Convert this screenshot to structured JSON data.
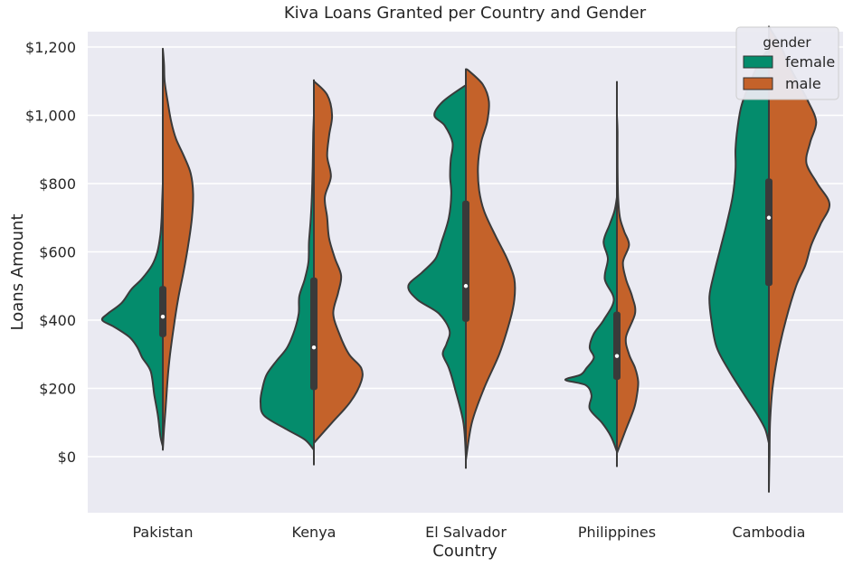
{
  "chart_data": {
    "type": "violin",
    "title": "Kiva Loans Granted per Country and Gender",
    "xlabel": "Country",
    "ylabel": "Loans Amount",
    "categories": [
      "Pakistan",
      "Kenya",
      "El Salvador",
      "Philippines",
      "Cambodia"
    ],
    "ylim": [
      -170,
      1270
    ],
    "yticks": [
      0,
      200,
      400,
      600,
      800,
      1000,
      1200
    ],
    "ytick_labels": [
      "$0",
      "$200",
      "$400",
      "$600",
      "$800",
      "$1,000",
      "$1,200"
    ],
    "grid": true,
    "split": true,
    "legend": {
      "title": "gender",
      "placement": "top-right",
      "entries": [
        {
          "name": "female",
          "color": "#048c6c"
        },
        {
          "name": "male",
          "color": "#c4622a"
        }
      ]
    },
    "series": [
      {
        "name": "female",
        "color": "#048c6c",
        "densities": [
          [
            [
              30,
              0
            ],
            [
              60,
              0.04
            ],
            [
              120,
              0.08
            ],
            [
              180,
              0.14
            ],
            [
              250,
              0.2
            ],
            [
              290,
              0.34
            ],
            [
              320,
              0.42
            ],
            [
              350,
              0.55
            ],
            [
              380,
              0.8
            ],
            [
              400,
              1.0
            ],
            [
              420,
              0.9
            ],
            [
              450,
              0.68
            ],
            [
              490,
              0.52
            ],
            [
              520,
              0.35
            ],
            [
              560,
              0.18
            ],
            [
              600,
              0.09
            ],
            [
              650,
              0.04
            ],
            [
              700,
              0.02
            ],
            [
              750,
              0.01
            ],
            [
              800,
              0
            ]
          ],
          [
            [
              20,
              0
            ],
            [
              50,
              0.15
            ],
            [
              80,
              0.45
            ],
            [
              120,
              0.82
            ],
            [
              160,
              0.88
            ],
            [
              200,
              0.85
            ],
            [
              240,
              0.78
            ],
            [
              280,
              0.62
            ],
            [
              320,
              0.44
            ],
            [
              370,
              0.32
            ],
            [
              420,
              0.25
            ],
            [
              470,
              0.24
            ],
            [
              520,
              0.15
            ],
            [
              570,
              0.09
            ],
            [
              630,
              0.08
            ],
            [
              700,
              0.05
            ],
            [
              780,
              0.03
            ],
            [
              850,
              0.02
            ],
            [
              950,
              0.01
            ],
            [
              1000,
              0
            ]
          ],
          [
            [
              0,
              0
            ],
            [
              100,
              0.04
            ],
            [
              200,
              0.18
            ],
            [
              260,
              0.28
            ],
            [
              300,
              0.38
            ],
            [
              330,
              0.32
            ],
            [
              370,
              0.27
            ],
            [
              420,
              0.45
            ],
            [
              460,
              0.8
            ],
            [
              500,
              0.95
            ],
            [
              540,
              0.72
            ],
            [
              580,
              0.5
            ],
            [
              630,
              0.4
            ],
            [
              700,
              0.28
            ],
            [
              770,
              0.24
            ],
            [
              820,
              0.26
            ],
            [
              870,
              0.25
            ],
            [
              920,
              0.22
            ],
            [
              970,
              0.35
            ],
            [
              1000,
              0.52
            ],
            [
              1040,
              0.38
            ],
            [
              1085,
              0.03
            ],
            [
              1087,
              0
            ]
          ],
          [
            [
              15,
              0
            ],
            [
              60,
              0.1
            ],
            [
              100,
              0.25
            ],
            [
              140,
              0.45
            ],
            [
              180,
              0.42
            ],
            [
              210,
              0.52
            ],
            [
              225,
              0.85
            ],
            [
              240,
              0.6
            ],
            [
              260,
              0.5
            ],
            [
              290,
              0.38
            ],
            [
              320,
              0.45
            ],
            [
              360,
              0.38
            ],
            [
              400,
              0.22
            ],
            [
              460,
              0.05
            ],
            [
              520,
              0.2
            ],
            [
              580,
              0.15
            ],
            [
              630,
              0.22
            ],
            [
              680,
              0.12
            ],
            [
              720,
              0.04
            ],
            [
              760,
              0
            ]
          ],
          [
            [
              40,
              0
            ],
            [
              80,
              0.06
            ],
            [
              120,
              0.18
            ],
            [
              180,
              0.4
            ],
            [
              250,
              0.65
            ],
            [
              320,
              0.86
            ],
            [
              400,
              0.95
            ],
            [
              470,
              0.98
            ],
            [
              540,
              0.9
            ],
            [
              610,
              0.8
            ],
            [
              680,
              0.7
            ],
            [
              760,
              0.6
            ],
            [
              840,
              0.55
            ],
            [
              900,
              0.55
            ],
            [
              960,
              0.52
            ],
            [
              1030,
              0.45
            ],
            [
              1100,
              0.3
            ],
            [
              1160,
              0.15
            ],
            [
              1195,
              0
            ]
          ]
        ]
      },
      {
        "name": "male",
        "color": "#c4622a",
        "densities": [
          [
            [
              20,
              0
            ],
            [
              80,
              0.02
            ],
            [
              150,
              0.05
            ],
            [
              230,
              0.08
            ],
            [
              300,
              0.12
            ],
            [
              380,
              0.18
            ],
            [
              460,
              0.25
            ],
            [
              540,
              0.34
            ],
            [
              620,
              0.42
            ],
            [
              700,
              0.48
            ],
            [
              770,
              0.5
            ],
            [
              830,
              0.46
            ],
            [
              880,
              0.35
            ],
            [
              930,
              0.22
            ],
            [
              980,
              0.14
            ],
            [
              1040,
              0.08
            ],
            [
              1100,
              0.03
            ],
            [
              1150,
              0.02
            ],
            [
              1195,
              0
            ]
          ],
          [
            [
              40,
              0
            ],
            [
              100,
              0.3
            ],
            [
              160,
              0.6
            ],
            [
              220,
              0.78
            ],
            [
              260,
              0.78
            ],
            [
              300,
              0.58
            ],
            [
              360,
              0.42
            ],
            [
              420,
              0.32
            ],
            [
              480,
              0.4
            ],
            [
              530,
              0.45
            ],
            [
              580,
              0.35
            ],
            [
              640,
              0.25
            ],
            [
              700,
              0.22
            ],
            [
              760,
              0.18
            ],
            [
              820,
              0.28
            ],
            [
              880,
              0.22
            ],
            [
              940,
              0.25
            ],
            [
              1000,
              0.3
            ],
            [
              1060,
              0.22
            ],
            [
              1100,
              0
            ]
          ],
          [
            [
              -10,
              0
            ],
            [
              100,
              0.1
            ],
            [
              200,
              0.3
            ],
            [
              300,
              0.55
            ],
            [
              400,
              0.73
            ],
            [
              460,
              0.8
            ],
            [
              520,
              0.8
            ],
            [
              580,
              0.68
            ],
            [
              650,
              0.48
            ],
            [
              720,
              0.3
            ],
            [
              780,
              0.22
            ],
            [
              850,
              0.2
            ],
            [
              920,
              0.25
            ],
            [
              980,
              0.35
            ],
            [
              1040,
              0.38
            ],
            [
              1090,
              0.28
            ],
            [
              1130,
              0.05
            ],
            [
              1135,
              0
            ]
          ],
          [
            [
              10,
              0
            ],
            [
              80,
              0.15
            ],
            [
              140,
              0.28
            ],
            [
              180,
              0.33
            ],
            [
              220,
              0.35
            ],
            [
              260,
              0.3
            ],
            [
              300,
              0.2
            ],
            [
              350,
              0.15
            ],
            [
              420,
              0.3
            ],
            [
              470,
              0.25
            ],
            [
              520,
              0.15
            ],
            [
              570,
              0.1
            ],
            [
              620,
              0.2
            ],
            [
              660,
              0.12
            ],
            [
              700,
              0.05
            ],
            [
              760,
              0.02
            ],
            [
              850,
              0.01
            ],
            [
              950,
              0.01
            ],
            [
              1000,
              0
            ]
          ],
          [
            [
              -100,
              0
            ],
            [
              0,
              0.01
            ],
            [
              100,
              0.02
            ],
            [
              200,
              0.06
            ],
            [
              300,
              0.15
            ],
            [
              400,
              0.28
            ],
            [
              500,
              0.45
            ],
            [
              560,
              0.6
            ],
            [
              620,
              0.7
            ],
            [
              680,
              0.85
            ],
            [
              740,
              1.0
            ],
            [
              800,
              0.8
            ],
            [
              860,
              0.62
            ],
            [
              920,
              0.68
            ],
            [
              980,
              0.78
            ],
            [
              1040,
              0.65
            ],
            [
              1090,
              0.5
            ],
            [
              1140,
              0.35
            ],
            [
              1200,
              0.2
            ],
            [
              1260,
              0
            ]
          ]
        ]
      }
    ],
    "box": [
      {
        "q1": 350,
        "median": 410,
        "q3": 500,
        "whisker_low": 30,
        "whisker_high": 1195
      },
      {
        "q1": 195,
        "median": 320,
        "q3": 525,
        "whisker_low": -25,
        "whisker_high": 1105
      },
      {
        "q1": 395,
        "median": 500,
        "q3": 750,
        "whisker_low": -35,
        "whisker_high": 1135
      },
      {
        "q1": 225,
        "median": 295,
        "q3": 425,
        "whisker_low": -30,
        "whisker_high": 1100
      },
      {
        "q1": 500,
        "median": 700,
        "q3": 815,
        "whisker_low": -105,
        "whisker_high": 1195
      }
    ]
  }
}
